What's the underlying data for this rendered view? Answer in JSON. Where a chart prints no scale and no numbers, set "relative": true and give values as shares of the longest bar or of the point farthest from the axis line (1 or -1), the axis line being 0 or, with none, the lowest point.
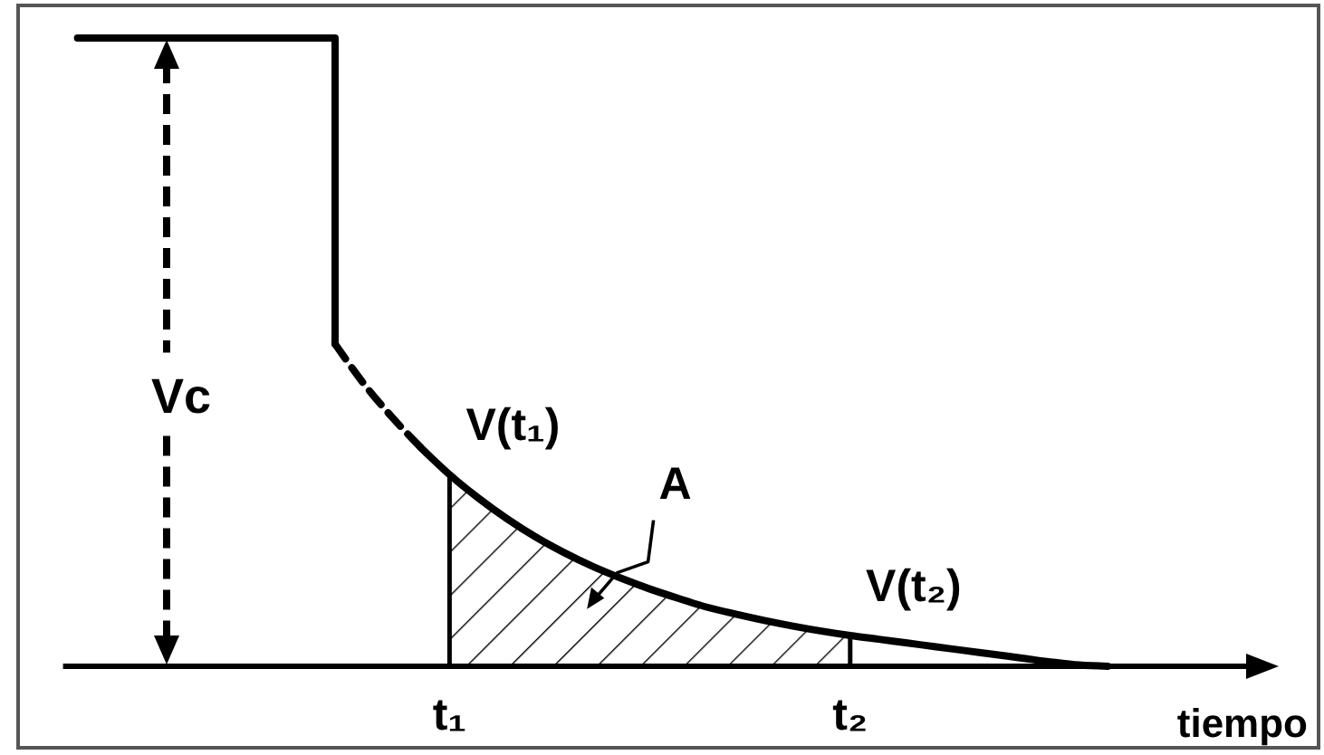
{
  "chart_data": {
    "type": "line",
    "relative": true,
    "xlabel": "tiempo",
    "categories": [
      null,
      null,
      null,
      null,
      null,
      null,
      null,
      null,
      null,
      null,
      null,
      null,
      null,
      "t₁",
      null,
      null,
      null,
      null,
      null,
      null,
      null,
      null,
      null,
      null,
      null,
      null,
      null,
      "t₂",
      null,
      null,
      null,
      null,
      null,
      null,
      null,
      null,
      null,
      null,
      null,
      null,
      null,
      null
    ],
    "series": [
      {
        "type": "step",
        "color": "#000000",
        "values": [
          1,
          1,
          1,
          1,
          1,
          1,
          1,
          1,
          1,
          0.513,
          null,
          null,
          null,
          null,
          null,
          null,
          null,
          null,
          null,
          null,
          null,
          null,
          null,
          null,
          null,
          null,
          null,
          null,
          null,
          null,
          null,
          null,
          null,
          null,
          null,
          null,
          null,
          null,
          null,
          null,
          null,
          null
        ]
      },
      {
        "color": "#000000",
        "line_style": "dashed",
        "values": [
          null,
          null,
          null,
          null,
          null,
          null,
          null,
          null,
          null,
          0.513,
          0.45,
          0.396,
          0.348,
          null,
          null,
          null,
          null,
          null,
          null,
          null,
          null,
          null,
          null,
          null,
          null,
          null,
          null,
          null,
          null,
          null,
          null,
          null,
          null,
          null,
          null,
          null,
          null,
          null,
          null,
          null,
          null,
          null
        ]
      },
      {
        "color": "#000000",
        "values": [
          null,
          null,
          null,
          null,
          null,
          null,
          null,
          null,
          null,
          null,
          null,
          null,
          0.348,
          0.305,
          0.268,
          0.235,
          0.206,
          0.181,
          0.159,
          0.14,
          0.123,
          0.108,
          0.094,
          0.083,
          0.073,
          0.064,
          0.056,
          0.049,
          0.043,
          0.037,
          0.031,
          0.025,
          0.019,
          0.013,
          0.007,
          0.002,
          0,
          null,
          null,
          null,
          null,
          null
        ]
      },
      {
        "type": "area",
        "name": "A",
        "color": "#000000",
        "values": [
          null,
          null,
          null,
          null,
          null,
          null,
          null,
          null,
          null,
          null,
          null,
          null,
          null,
          0.305,
          0.268,
          0.235,
          0.206,
          0.181,
          0.159,
          0.14,
          0.123,
          0.108,
          0.094,
          0.083,
          0.073,
          0.064,
          0.056,
          0.049,
          null,
          null,
          null,
          null,
          null,
          null,
          null,
          null,
          null,
          null,
          null,
          null,
          null,
          null
        ]
      }
    ],
    "annotations": [
      "Vc",
      {
        "text": "V(t₁)",
        "x": "t₁",
        "y": 0.305
      },
      {
        "text": "V(t₂)",
        "x": "t₂",
        "y": 0.049
      }
    ]
  }
}
